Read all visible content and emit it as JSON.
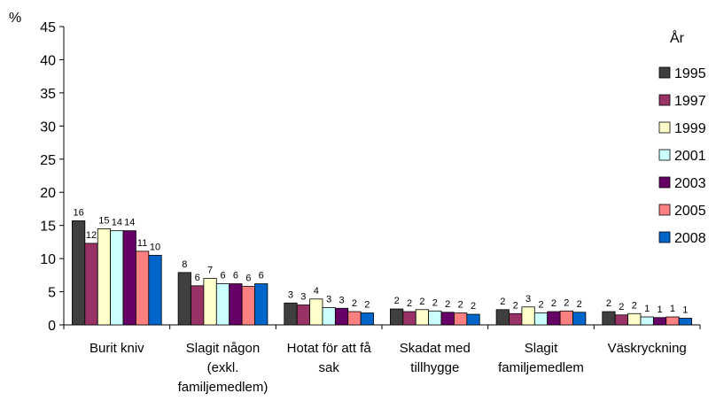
{
  "chart_data": {
    "type": "bar",
    "title": "",
    "ylabel": "%",
    "xlabel": "",
    "ylim": [
      0,
      45
    ],
    "yticks": [
      0,
      5,
      10,
      15,
      20,
      25,
      30,
      35,
      40,
      45
    ],
    "grid": false,
    "legend": {
      "title": "År",
      "position": "right"
    },
    "categories": [
      [
        "Burit kniv"
      ],
      [
        "Slagit någon",
        "(exkl.",
        "familjemedlem)"
      ],
      [
        "Hotat för att få",
        "sak"
      ],
      [
        "Skadat med",
        "tillhygge"
      ],
      [
        "Slagit",
        "familjemedlem"
      ],
      [
        "Väskryckning"
      ]
    ],
    "series": [
      {
        "name": "1995",
        "color": "#3f3f3f",
        "values": [
          15.7,
          7.9,
          3.3,
          2.4,
          2.3,
          2.0
        ],
        "labels": [
          "16",
          "8",
          "3",
          "2",
          "2",
          "2"
        ]
      },
      {
        "name": "1997",
        "color": "#993366",
        "values": [
          12.3,
          5.9,
          3.0,
          2.0,
          1.7,
          1.5
        ],
        "labels": [
          "12",
          "6",
          "3",
          "2",
          "2",
          "2"
        ]
      },
      {
        "name": "1999",
        "color": "#ffffcc",
        "values": [
          14.5,
          7.0,
          3.9,
          2.3,
          2.7,
          1.7
        ],
        "labels": [
          "15",
          "7",
          "4",
          "2",
          "3",
          "2"
        ]
      },
      {
        "name": "2001",
        "color": "#ccffff",
        "values": [
          14.2,
          6.2,
          2.6,
          2.1,
          1.8,
          1.2
        ],
        "labels": [
          "14",
          "6",
          "3",
          "2",
          "2",
          "1"
        ]
      },
      {
        "name": "2003",
        "color": "#660066",
        "values": [
          14.2,
          6.2,
          2.5,
          1.9,
          2.0,
          1.1
        ],
        "labels": [
          "14",
          "6",
          "3",
          "2",
          "2",
          "1"
        ]
      },
      {
        "name": "2005",
        "color": "#ff8080",
        "values": [
          11.1,
          5.8,
          2.0,
          1.8,
          2.1,
          1.2
        ],
        "labels": [
          "11",
          "6",
          "2",
          "2",
          "2",
          "1"
        ]
      },
      {
        "name": "2008",
        "color": "#0066cc",
        "values": [
          10.5,
          6.2,
          1.8,
          1.6,
          1.9,
          1.0
        ],
        "labels": [
          "10",
          "6",
          "2",
          "2",
          "2",
          "1"
        ]
      }
    ]
  }
}
